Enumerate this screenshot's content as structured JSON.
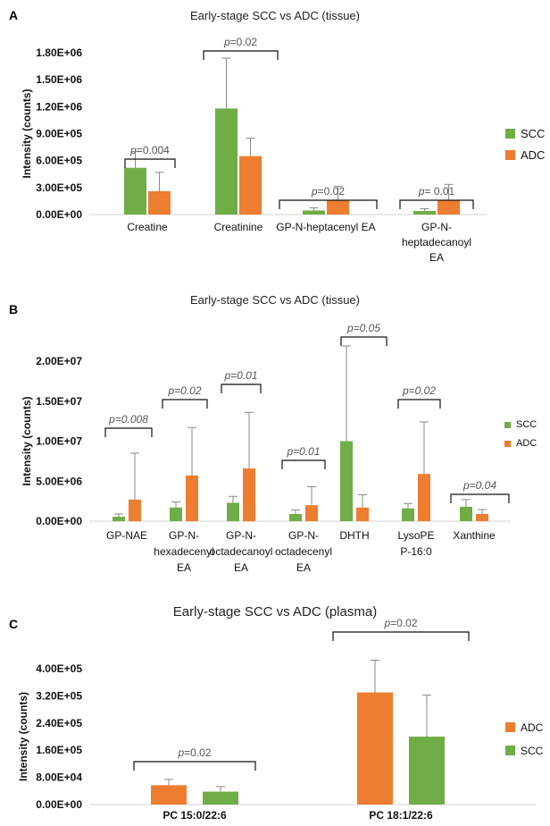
{
  "colors": {
    "SCC": "#70AD47",
    "ADC": "#ED7D31"
  },
  "chart_data": [
    {
      "panel": "A",
      "type": "bar",
      "title": "Early-stage SCC vs ADC (tissue)",
      "ylabel": "Intensity (counts)",
      "ylim": [
        0,
        1800000
      ],
      "yticks": [
        "0.00E+00",
        "3.00E+05",
        "6.00E+05",
        "9.00E+05",
        "1.20E+06",
        "1.50E+06",
        "1.80E+06"
      ],
      "categories": [
        [
          "Creatine"
        ],
        [
          "Creatinine"
        ],
        [
          "GP-N-heptacenyl EA"
        ],
        [
          "GP-N-",
          "heptadecanoyl",
          "EA"
        ]
      ],
      "series": [
        {
          "name": "SCC",
          "values": [
            520000,
            1180000,
            45000,
            40000
          ],
          "errors": [
            180000,
            560000,
            30000,
            25000
          ]
        },
        {
          "name": "ADC",
          "values": [
            260000,
            650000,
            155000,
            160000
          ],
          "errors": [
            210000,
            200000,
            160000,
            175000
          ]
        }
      ],
      "pvalues": [
        "=0.004",
        "=0.02",
        "=0.02",
        "= 0.01"
      ],
      "pitalic": false,
      "legend": "right"
    },
    {
      "panel": "B",
      "type": "bar",
      "title": "Early-stage SCC vs ADC (tissue)",
      "ylabel": "Intensity (counts)",
      "ylim": [
        0,
        20000000
      ],
      "yticks": [
        "0.00E+00",
        "5.00E+06",
        "1.00E+07",
        "1.50E+07",
        "2.00E+07"
      ],
      "categories": [
        [
          "GP-NAE"
        ],
        [
          "GP-N-",
          "hexadecenyl",
          "EA"
        ],
        [
          "GP-N-",
          "octadecanoyl",
          "EA"
        ],
        [
          "GP-N-",
          "octadecenyl",
          "EA"
        ],
        [
          "DHTH"
        ],
        [
          "LysoPE",
          "P-16:0"
        ],
        [
          "Xanthine"
        ]
      ],
      "series": [
        {
          "name": "SCC",
          "values": [
            550000,
            1700000,
            2300000,
            900000,
            10000000,
            1600000,
            1800000
          ],
          "errors": [
            350000,
            700000,
            800000,
            500000,
            11900000,
            600000,
            900000
          ]
        },
        {
          "name": "ADC",
          "values": [
            2700000,
            5700000,
            6600000,
            2000000,
            1700000,
            5900000,
            900000
          ],
          "errors": [
            5800000,
            6000000,
            7000000,
            2300000,
            1600000,
            6500000,
            550000
          ]
        }
      ],
      "pvalues": [
        "=0.008",
        "=0.02",
        "=0.01",
        "=0.01",
        "=0.05",
        "=0.02",
        "=0.04"
      ],
      "pitalic": true,
      "legend": "right"
    },
    {
      "panel": "C",
      "type": "bar",
      "title": "Early-stage SCC vs ADC (plasma)",
      "ylabel": "Intensity (counts)",
      "ylim": [
        0,
        400000
      ],
      "yticks": [
        "0.00E+00",
        "8.00E+04",
        "1.60E+05",
        "2.40E+05",
        "3.20E+05",
        "4.00E+05"
      ],
      "categories": [
        [
          "PC 15:0/22:6"
        ],
        [
          "PC 18:1/22:6"
        ]
      ],
      "series": [
        {
          "name": "ADC",
          "values": [
            57000,
            330000
          ],
          "errors": [
            17000,
            95000
          ]
        },
        {
          "name": "SCC",
          "values": [
            38000,
            200000
          ],
          "errors": [
            15000,
            122000
          ]
        }
      ],
      "pvalues": [
        "=0.02",
        "=0.02"
      ],
      "pitalic": false,
      "legend": "right"
    }
  ]
}
